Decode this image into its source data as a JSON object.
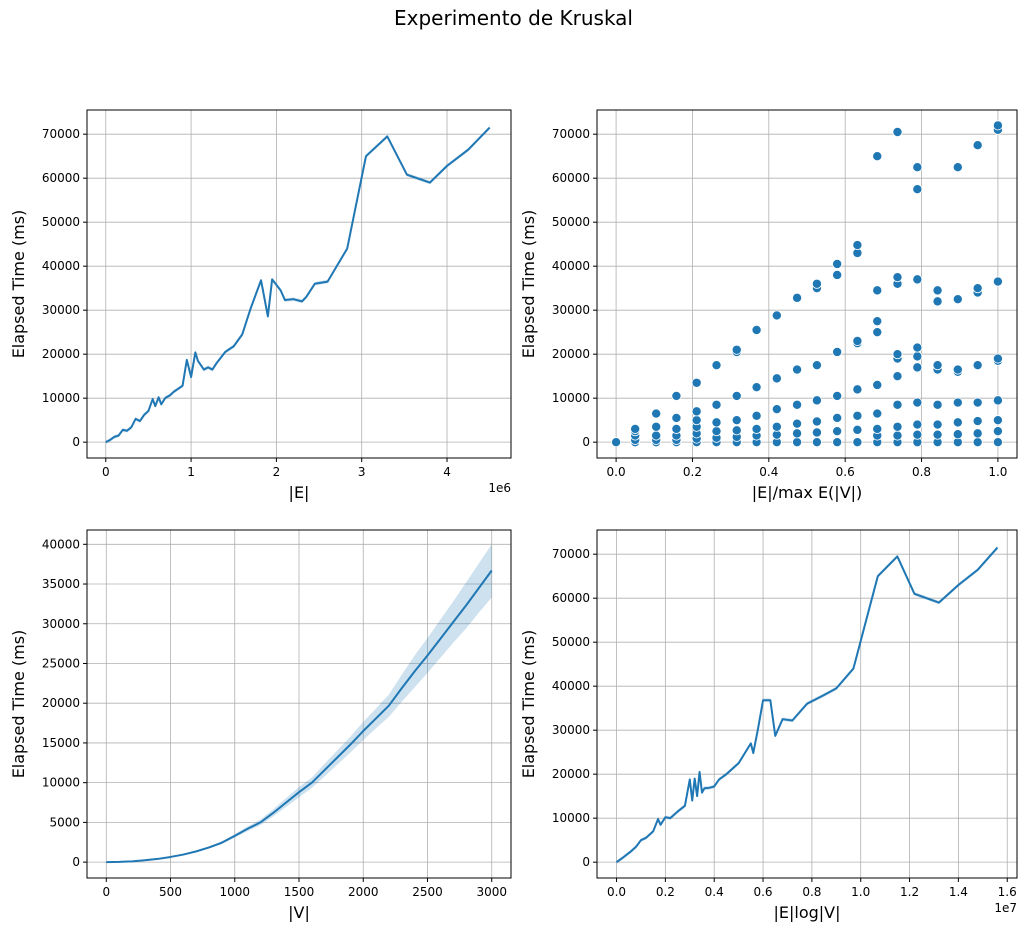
{
  "figure": {
    "title": "Experimento de Kruskal"
  },
  "colors": {
    "line": "#1f77b4",
    "band": "#1f77b4",
    "grid": "#b0b0b0"
  },
  "chart_data": [
    {
      "type": "line",
      "xlabel": "|E|",
      "ylabel": "Elapsed Time (ms)",
      "x_offset_label": "1e6",
      "xlim": [
        -0.22,
        4.75
      ],
      "ylim": [
        -3600,
        75500
      ],
      "xticks": [
        0,
        1,
        2,
        3,
        4
      ],
      "xtick_labels": [
        "0",
        "1",
        "2",
        "3",
        "4"
      ],
      "yticks": [
        0,
        10000,
        20000,
        30000,
        40000,
        50000,
        60000,
        70000
      ],
      "grid": true,
      "band_width": 400,
      "series": [
        {
          "x": [
            0,
            0.05,
            0.1,
            0.15,
            0.2,
            0.25,
            0.3,
            0.35,
            0.4,
            0.45,
            0.5,
            0.55,
            0.58,
            0.62,
            0.65,
            0.7,
            0.75,
            0.8,
            0.9,
            0.95,
            1.0,
            1.05,
            1.08,
            1.15,
            1.2,
            1.25,
            1.3,
            1.4,
            1.5,
            1.6,
            1.7,
            1.82,
            1.9,
            1.95,
            2.05,
            2.1,
            2.2,
            2.3,
            2.35,
            2.45,
            2.6,
            2.83,
            3.05,
            3.3,
            3.53,
            3.8,
            4.0,
            4.25,
            4.5
          ],
          "y": [
            0,
            500,
            1200,
            1500,
            2800,
            2600,
            3400,
            5300,
            4800,
            6200,
            7100,
            9800,
            8200,
            10200,
            8600,
            10100,
            10600,
            11500,
            12800,
            18700,
            14800,
            20400,
            18500,
            16500,
            17000,
            16500,
            18000,
            20500,
            21800,
            24500,
            30500,
            36800,
            28600,
            37000,
            34500,
            32300,
            32500,
            32000,
            33000,
            36000,
            36500,
            44000,
            65000,
            69500,
            60800,
            59000,
            62800,
            66500,
            71500
          ]
        }
      ]
    },
    {
      "type": "scatter",
      "xlabel": "|E|/max E(|V|)",
      "ylabel": "Elapsed Time (ms)",
      "xlim": [
        -0.05,
        1.05
      ],
      "ylim": [
        -3600,
        75500
      ],
      "xticks": [
        0,
        0.2,
        0.4,
        0.6,
        0.8,
        1.0
      ],
      "xtick_labels": [
        "0.0",
        "0.2",
        "0.4",
        "0.6",
        "0.8",
        "1.0"
      ],
      "yticks": [
        0,
        10000,
        20000,
        30000,
        40000,
        50000,
        60000,
        70000
      ],
      "grid": true,
      "points": {
        "x": [
          0,
          0.05,
          0.05,
          0.05,
          0.05,
          0.05,
          0.105,
          0.105,
          0.105,
          0.105,
          0.105,
          0.158,
          0.158,
          0.158,
          0.158,
          0.158,
          0.158,
          0.211,
          0.211,
          0.211,
          0.211,
          0.211,
          0.211,
          0.211,
          0.263,
          0.263,
          0.263,
          0.263,
          0.263,
          0.263,
          0.316,
          0.316,
          0.316,
          0.316,
          0.316,
          0.316,
          0.316,
          0.368,
          0.368,
          0.368,
          0.368,
          0.368,
          0.368,
          0.421,
          0.421,
          0.421,
          0.421,
          0.421,
          0.421,
          0.474,
          0.474,
          0.474,
          0.474,
          0.474,
          0.474,
          0.526,
          0.526,
          0.526,
          0.526,
          0.526,
          0.526,
          0.526,
          0.579,
          0.579,
          0.579,
          0.579,
          0.579,
          0.579,
          0.579,
          0.632,
          0.632,
          0.632,
          0.632,
          0.632,
          0.632,
          0.632,
          0.632,
          0.684,
          0.684,
          0.684,
          0.684,
          0.684,
          0.684,
          0.684,
          0.684,
          0.684,
          0.737,
          0.737,
          0.737,
          0.737,
          0.737,
          0.737,
          0.737,
          0.737,
          0.737,
          0.737,
          0.789,
          0.789,
          0.789,
          0.789,
          0.789,
          0.789,
          0.789,
          0.789,
          0.789,
          0.789,
          0.842,
          0.842,
          0.842,
          0.842,
          0.842,
          0.842,
          0.842,
          0.842,
          0.895,
          0.895,
          0.895,
          0.895,
          0.895,
          0.895,
          0.895,
          0.895,
          0.947,
          0.947,
          0.947,
          0.947,
          0.947,
          0.947,
          0.947,
          0.947,
          1.0,
          1.0,
          1.0,
          1.0,
          1.0,
          1.0,
          1.0,
          1.0,
          1.0
        ],
        "y": [
          0,
          0,
          500,
          1500,
          2500,
          3000,
          0,
          500,
          1500,
          3500,
          6500,
          0,
          500,
          1500,
          3000,
          5500,
          10500,
          0,
          800,
          2000,
          3500,
          5000,
          7000,
          13500,
          0,
          1000,
          2500,
          4500,
          8500,
          17500,
          0,
          1200,
          2700,
          5000,
          10500,
          20500,
          21000,
          0,
          1500,
          3000,
          6000,
          12500,
          25500,
          0,
          1700,
          3500,
          7500,
          14500,
          28800,
          0,
          2000,
          4200,
          8500,
          16500,
          32800,
          0,
          2200,
          4700,
          9500,
          17500,
          35000,
          36000,
          0,
          2500,
          5500,
          10500,
          20500,
          38000,
          40500,
          0,
          2800,
          6000,
          12000,
          22500,
          23000,
          43000,
          44800,
          0,
          1500,
          3000,
          6500,
          13000,
          25000,
          27500,
          34500,
          65000,
          0,
          1500,
          3500,
          8500,
          15000,
          19000,
          20000,
          36000,
          37500,
          70500,
          0,
          1700,
          4000,
          9000,
          17000,
          19500,
          21500,
          37000,
          57500,
          62500,
          0,
          1700,
          4000,
          8500,
          16500,
          17500,
          32000,
          34500,
          0,
          1800,
          4500,
          9000,
          16000,
          16500,
          32500,
          62500,
          0,
          2000,
          4800,
          9000,
          17500,
          34000,
          35000,
          67500,
          0,
          2500,
          5000,
          9500,
          18500,
          19000,
          36500,
          71000,
          72000
        ]
      }
    },
    {
      "type": "line",
      "xlabel": "|V|",
      "ylabel": "Elapsed Time (ms)",
      "xlim": [
        -150,
        3150
      ],
      "ylim": [
        -2000,
        41800
      ],
      "xticks": [
        0,
        500,
        1000,
        1500,
        2000,
        2500,
        3000
      ],
      "xtick_labels": [
        "0",
        "500",
        "1000",
        "1500",
        "2000",
        "2500",
        "3000"
      ],
      "yticks": [
        0,
        5000,
        10000,
        15000,
        20000,
        25000,
        30000,
        35000,
        40000
      ],
      "grid": true,
      "series": [
        {
          "x": [
            0,
            100,
            200,
            300,
            400,
            500,
            600,
            700,
            800,
            900,
            1000,
            1100,
            1200,
            1300,
            1400,
            1500,
            1600,
            1700,
            1800,
            1900,
            2000,
            2100,
            2200,
            2300,
            2400,
            2500,
            2600,
            2700,
            2800,
            2900,
            3000
          ],
          "y": [
            0,
            30,
            100,
            230,
            400,
            650,
            950,
            1350,
            1850,
            2450,
            3300,
            4200,
            5000,
            6200,
            7500,
            8800,
            10000,
            11600,
            13200,
            14800,
            16500,
            18100,
            19700,
            21900,
            24000,
            26000,
            28100,
            30200,
            32300,
            34500,
            36700
          ],
          "lower": [
            0,
            25,
            85,
            200,
            360,
            590,
            880,
            1260,
            1720,
            2280,
            3080,
            3900,
            4650,
            5750,
            6950,
            8150,
            9350,
            10800,
            12300,
            13800,
            15350,
            16850,
            18300,
            20200,
            22000,
            23800,
            25700,
            27600,
            29400,
            31400,
            33300
          ],
          "upper": [
            0,
            35,
            115,
            260,
            440,
            710,
            1020,
            1440,
            1980,
            2620,
            3520,
            4500,
            5350,
            6650,
            8050,
            9450,
            10650,
            12400,
            14100,
            15800,
            17650,
            19350,
            21100,
            23600,
            26000,
            28200,
            30500,
            32800,
            35200,
            37600,
            40000
          ]
        }
      ]
    },
    {
      "type": "line",
      "xlabel": "|E|log|V|",
      "ylabel": "Elapsed Time (ms)",
      "x_offset_label": "1e7",
      "xlim": [
        -0.08,
        1.64
      ],
      "ylim": [
        -3600,
        75500
      ],
      "xticks": [
        0,
        0.2,
        0.4,
        0.6,
        0.8,
        1.0,
        1.2,
        1.4,
        1.6
      ],
      "xtick_labels": [
        "0.0",
        "0.2",
        "0.4",
        "0.6",
        "0.8",
        "1.0",
        "1.2",
        "1.4",
        "1.6"
      ],
      "yticks": [
        0,
        10000,
        20000,
        30000,
        40000,
        50000,
        60000,
        70000
      ],
      "grid": true,
      "band_width": 400,
      "series": [
        {
          "x": [
            0,
            0.03,
            0.06,
            0.08,
            0.1,
            0.12,
            0.15,
            0.17,
            0.18,
            0.2,
            0.22,
            0.25,
            0.28,
            0.3,
            0.31,
            0.32,
            0.33,
            0.34,
            0.35,
            0.36,
            0.38,
            0.4,
            0.42,
            0.45,
            0.5,
            0.55,
            0.56,
            0.58,
            0.6,
            0.61,
            0.63,
            0.65,
            0.68,
            0.72,
            0.78,
            0.85,
            0.9,
            0.97,
            1.07,
            1.15,
            1.22,
            1.32,
            1.4,
            1.48,
            1.56
          ],
          "y": [
            0,
            1200,
            2500,
            3500,
            5000,
            5500,
            7000,
            9800,
            8500,
            10200,
            10000,
            11500,
            12800,
            18800,
            14000,
            19000,
            15000,
            20500,
            15800,
            16800,
            16900,
            17200,
            18800,
            20000,
            22500,
            27000,
            24800,
            30500,
            36800,
            36800,
            36800,
            28700,
            32500,
            32200,
            36000,
            38000,
            39500,
            44000,
            65000,
            69500,
            61000,
            59000,
            63000,
            66500,
            71500
          ]
        }
      ]
    }
  ]
}
